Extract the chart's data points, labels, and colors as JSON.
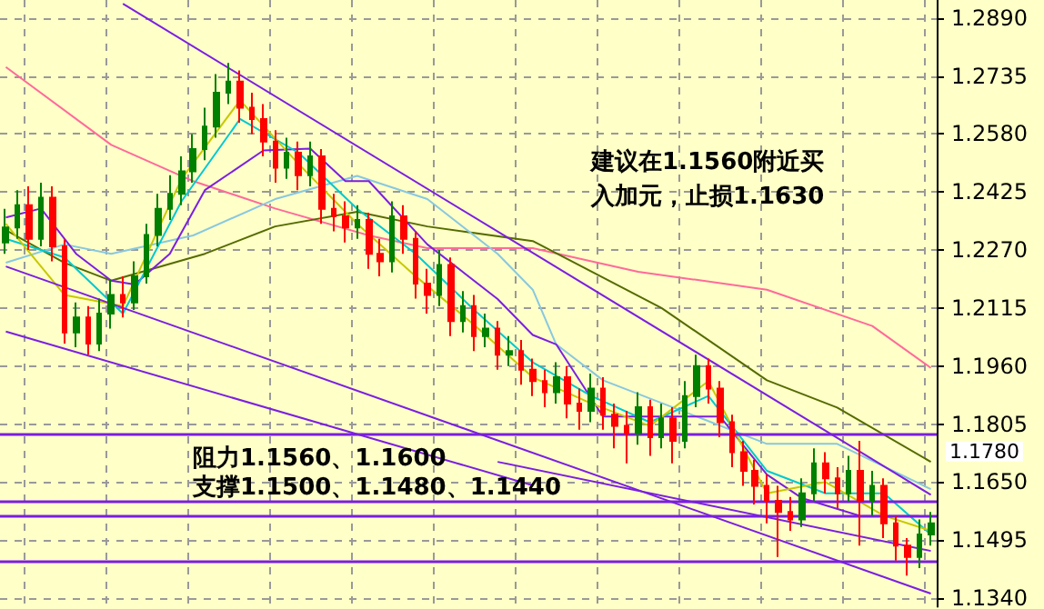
{
  "chart_data": {
    "type": "candlestick",
    "categories": [
      null,
      null,
      null,
      null,
      null,
      null,
      null,
      null,
      null,
      null,
      null,
      null,
      null,
      null,
      null,
      null,
      null,
      null,
      null,
      null,
      null,
      null,
      null,
      null,
      null,
      null,
      null,
      null,
      null,
      null,
      null,
      null,
      null,
      null,
      null,
      null,
      null,
      null,
      null,
      null,
      null,
      null,
      null,
      null,
      null,
      null,
      null,
      null,
      null,
      null,
      null,
      null,
      null,
      null,
      null,
      null,
      null,
      null,
      null,
      null,
      null,
      null,
      null,
      null,
      null,
      null,
      null,
      null,
      null,
      null,
      null,
      null,
      null,
      null,
      null,
      null,
      null,
      null,
      null,
      null
    ],
    "ylim": [
      1.1317,
      1.2938
    ],
    "yticks": [
      {
        "value": 1.289,
        "label": "1.2890"
      },
      {
        "value": 1.2735,
        "label": "1.2735"
      },
      {
        "value": 1.258,
        "label": "1.2580"
      },
      {
        "value": 1.2425,
        "label": "1.2425"
      },
      {
        "value": 1.227,
        "label": "1.2270"
      },
      {
        "value": 1.2115,
        "label": "1.2115"
      },
      {
        "value": 1.196,
        "label": "1.1960"
      },
      {
        "value": 1.1805,
        "label": "1.1805"
      },
      {
        "value": 1.165,
        "label": "1.1650"
      },
      {
        "value": 1.1495,
        "label": "1.1495"
      },
      {
        "value": 1.134,
        "label": "1.1340"
      }
    ],
    "tick_labels": "y",
    "grid": true,
    "ref_lines": [
      {
        "axis": "y",
        "value": 1.178,
        "label": "1.1780",
        "color": "#7b1fe0"
      },
      {
        "axis": "y",
        "value": 1.16,
        "color": "#7b1fe0"
      },
      {
        "axis": "y",
        "value": 1.156,
        "color": "#7b1fe0"
      },
      {
        "axis": "y",
        "value": 1.144,
        "color": "#7b1fe0"
      }
    ],
    "annotations": [
      "建议在1.1560附近买入加元，止损1.1630",
      "阻力1.1560、1.1600",
      "支撑1.1500、1.1480、1.1440"
    ],
    "series": [
      {
        "ohlc": [
          [
            1.229,
            1.238,
            1.226,
            1.233
          ],
          [
            1.233,
            1.243,
            1.23,
            1.239
          ],
          [
            1.239,
            1.244,
            1.227,
            1.23
          ],
          [
            1.23,
            1.245,
            1.228,
            1.241
          ],
          [
            1.241,
            1.244,
            1.224,
            1.228
          ],
          [
            1.228,
            1.23,
            1.202,
            1.205
          ],
          [
            1.205,
            1.213,
            1.201,
            1.209
          ],
          [
            1.209,
            1.212,
            1.199,
            1.202
          ],
          [
            1.202,
            1.214,
            1.2,
            1.21
          ],
          [
            1.21,
            1.219,
            1.206,
            1.215
          ],
          [
            1.215,
            1.22,
            1.209,
            1.213
          ],
          [
            1.213,
            1.224,
            1.211,
            1.22
          ],
          [
            1.22,
            1.234,
            1.218,
            1.231
          ],
          [
            1.231,
            1.242,
            1.228,
            1.238
          ],
          [
            1.238,
            1.247,
            1.235,
            1.242
          ],
          [
            1.242,
            1.252,
            1.239,
            1.248
          ],
          [
            1.248,
            1.258,
            1.245,
            1.254
          ],
          [
            1.254,
            1.265,
            1.251,
            1.26
          ],
          [
            1.26,
            1.274,
            1.257,
            1.269
          ],
          [
            1.269,
            1.277,
            1.266,
            1.272
          ],
          [
            1.272,
            1.275,
            1.261,
            1.265
          ],
          [
            1.265,
            1.269,
            1.258,
            1.262
          ],
          [
            1.262,
            1.266,
            1.252,
            1.256
          ],
          [
            1.256,
            1.259,
            1.245,
            1.249
          ],
          [
            1.249,
            1.257,
            1.246,
            1.253
          ],
          [
            1.253,
            1.256,
            1.243,
            1.247
          ],
          [
            1.247,
            1.256,
            1.244,
            1.252
          ],
          [
            1.252,
            1.254,
            1.234,
            1.238
          ],
          [
            1.238,
            1.242,
            1.232,
            1.236
          ],
          [
            1.236,
            1.24,
            1.229,
            1.233
          ],
          [
            1.233,
            1.239,
            1.23,
            1.235
          ],
          [
            1.235,
            1.237,
            1.222,
            1.226
          ],
          [
            1.226,
            1.23,
            1.22,
            1.224
          ],
          [
            1.224,
            1.24,
            1.221,
            1.236
          ],
          [
            1.236,
            1.239,
            1.226,
            1.23
          ],
          [
            1.23,
            1.232,
            1.214,
            1.218
          ],
          [
            1.218,
            1.222,
            1.21,
            1.215
          ],
          [
            1.215,
            1.227,
            1.212,
            1.223
          ],
          [
            1.223,
            1.225,
            1.204,
            1.208
          ],
          [
            1.208,
            1.216,
            1.205,
            1.212
          ],
          [
            1.212,
            1.215,
            1.2,
            1.204
          ],
          [
            1.204,
            1.21,
            1.201,
            1.206
          ],
          [
            1.206,
            1.208,
            1.195,
            1.199
          ],
          [
            1.199,
            1.204,
            1.196,
            1.2
          ],
          [
            1.2,
            1.203,
            1.191,
            1.195
          ],
          [
            1.195,
            1.198,
            1.188,
            1.192
          ],
          [
            1.192,
            1.195,
            1.185,
            1.189
          ],
          [
            1.189,
            1.197,
            1.186,
            1.193
          ],
          [
            1.193,
            1.196,
            1.182,
            1.186
          ],
          [
            1.186,
            1.19,
            1.179,
            1.184
          ],
          [
            1.184,
            1.194,
            1.181,
            1.19
          ],
          [
            1.19,
            1.193,
            1.179,
            1.183
          ],
          [
            1.183,
            1.186,
            1.174,
            1.18
          ],
          [
            1.18,
            1.184,
            1.17,
            1.178
          ],
          [
            1.178,
            1.189,
            1.175,
            1.185
          ],
          [
            1.185,
            1.187,
            1.172,
            1.177
          ],
          [
            1.177,
            1.186,
            1.174,
            1.182
          ],
          [
            1.182,
            1.185,
            1.17,
            1.176
          ],
          [
            1.176,
            1.192,
            1.174,
            1.188
          ],
          [
            1.188,
            1.199,
            1.185,
            1.196
          ],
          [
            1.196,
            1.198,
            1.186,
            1.19
          ],
          [
            1.19,
            1.192,
            1.177,
            1.181
          ],
          [
            1.181,
            1.183,
            1.169,
            1.173
          ],
          [
            1.173,
            1.176,
            1.164,
            1.168
          ],
          [
            1.168,
            1.171,
            1.159,
            1.164
          ],
          [
            1.164,
            1.167,
            1.154,
            1.16
          ],
          [
            1.16,
            1.164,
            1.145,
            1.157
          ],
          [
            1.157,
            1.161,
            1.152,
            1.155
          ],
          [
            1.155,
            1.166,
            1.153,
            1.162
          ],
          [
            1.162,
            1.174,
            1.16,
            1.17
          ],
          [
            1.17,
            1.173,
            1.162,
            1.166
          ],
          [
            1.166,
            1.169,
            1.158,
            1.162
          ],
          [
            1.162,
            1.172,
            1.16,
            1.168
          ],
          [
            1.168,
            1.176,
            1.148,
            1.16
          ],
          [
            1.16,
            1.168,
            1.156,
            1.164
          ],
          [
            1.164,
            1.166,
            1.15,
            1.154
          ],
          [
            1.154,
            1.156,
            1.144,
            1.148
          ],
          [
            1.148,
            1.15,
            1.14,
            1.145
          ],
          [
            1.145,
            1.155,
            1.142,
            1.151
          ],
          [
            1.151,
            1.157,
            1.148,
            1.154
          ]
        ],
        "colors": [
          "#008000",
          "#008000",
          "#ff0000",
          "#008000",
          "#ff0000",
          "#ff0000",
          "#008000",
          "#ff0000",
          "#008000",
          "#008000",
          "#ff0000",
          "#008000",
          "#008000",
          "#008000",
          "#008000",
          "#008000",
          "#008000",
          "#008000",
          "#008000",
          "#008000",
          "#ff0000",
          "#ff0000",
          "#ff0000",
          "#ff0000",
          "#008000",
          "#ff0000",
          "#008000",
          "#ff0000",
          "#ff0000",
          "#ff0000",
          "#008000",
          "#ff0000",
          "#ff0000",
          "#008000",
          "#ff0000",
          "#ff0000",
          "#ff0000",
          "#008000",
          "#ff0000",
          "#008000",
          "#ff0000",
          "#008000",
          "#ff0000",
          "#008000",
          "#ff0000",
          "#ff0000",
          "#ff0000",
          "#008000",
          "#ff0000",
          "#ff0000",
          "#008000",
          "#ff0000",
          "#ff0000",
          "#ff0000",
          "#008000",
          "#ff0000",
          "#008000",
          "#ff0000",
          "#008000",
          "#008000",
          "#ff0000",
          "#ff0000",
          "#ff0000",
          "#ff0000",
          "#ff0000",
          "#ff0000",
          "#ff0000",
          "#ff0000",
          "#008000",
          "#008000",
          "#ff0000",
          "#ff0000",
          "#008000",
          "#ff0000",
          "#008000",
          "#ff0000",
          "#ff0000",
          "#ff0000",
          "#008000",
          "#008000"
        ]
      },
      {
        "type": "line",
        "color": "#ff6a9a",
        "values": [
          1.2759,
          null,
          null,
          null,
          null,
          null,
          null,
          null,
          null,
          1.2551,
          null,
          null,
          null,
          null,
          null,
          null,
          1.2454,
          null,
          null,
          null,
          null,
          null,
          null,
          1.2381,
          null,
          null,
          null,
          null,
          null,
          null,
          null,
          1.2309,
          null,
          null,
          null,
          null,
          1.2275,
          null,
          null,
          null,
          null,
          null,
          null,
          null,
          null,
          1.2275,
          null,
          null,
          null,
          null,
          null,
          null,
          null,
          null,
          1.2212,
          null,
          null,
          null,
          null,
          null,
          null,
          null,
          null,
          null,
          null,
          1.2164,
          null,
          null,
          null,
          null,
          null,
          null,
          null,
          null,
          1.2067,
          null,
          null,
          null,
          null,
          1.1955
        ]
      },
      {
        "type": "line",
        "color": "#556b00",
        "values": [
          1.2323,
          null,
          null,
          null,
          null,
          1.2236,
          null,
          null,
          null,
          1.2188,
          null,
          null,
          null,
          null,
          null,
          null,
          null,
          1.226,
          null,
          null,
          null,
          null,
          null,
          1.2333,
          null,
          null,
          null,
          null,
          null,
          null,
          1.2372,
          null,
          null,
          null,
          null,
          null,
          1.2333,
          null,
          null,
          null,
          null,
          null,
          null,
          null,
          null,
          1.2294,
          null,
          null,
          null,
          null,
          null,
          null,
          null,
          null,
          null,
          null,
          1.2115,
          null,
          null,
          null,
          null,
          null,
          null,
          null,
          null,
          1.1922,
          null,
          null,
          null,
          null,
          null,
          1.1849,
          null,
          null,
          null,
          null,
          null,
          null,
          null,
          1.1704
        ]
      },
      {
        "type": "line",
        "color": "#88c8e0",
        "values": [
          1.2236,
          null,
          null,
          null,
          null,
          1.2285,
          null,
          null,
          null,
          1.226,
          null,
          null,
          null,
          null,
          null,
          null,
          1.2309,
          null,
          null,
          null,
          null,
          null,
          null,
          1.2406,
          null,
          null,
          null,
          null,
          null,
          null,
          1.2468,
          null,
          null,
          null,
          null,
          null,
          1.2406,
          null,
          null,
          null,
          null,
          null,
          1.226,
          null,
          null,
          1.2164,
          null,
          1.2018,
          null,
          null,
          null,
          1.1922,
          null,
          null,
          null,
          null,
          null,
          null,
          null,
          1.1825,
          null,
          null,
          null,
          null,
          null,
          1.1752,
          null,
          null,
          null,
          null,
          null,
          1.1752,
          null,
          null,
          null,
          null,
          null,
          null,
          null,
          1.1631
        ]
      },
      {
        "type": "line",
        "color": "#7b1fe0",
        "values": [
          1.2357,
          null,
          null,
          1.2381,
          null,
          null,
          1.226,
          null,
          null,
          1.2188,
          null,
          1.2178,
          null,
          null,
          1.226,
          null,
          null,
          1.243,
          null,
          null,
          null,
          null,
          1.2536,
          null,
          null,
          null,
          1.2541,
          null,
          null,
          1.2454,
          null,
          1.2454,
          null,
          null,
          null,
          null,
          1.2285,
          null,
          null,
          null,
          null,
          null,
          1.2139,
          null,
          null,
          1.2043,
          null,
          1.2018,
          null,
          null,
          null,
          1.1825,
          null,
          null,
          null,
          null,
          1.1825,
          null,
          null,
          null,
          null,
          1.1825,
          null,
          null,
          null,
          1.167,
          null,
          null,
          1.1607,
          null,
          null,
          null,
          null,
          1.1559,
          null,
          null,
          null,
          null,
          1.1559,
          null
        ]
      },
      {
        "type": "line",
        "color": "#00c8d0",
        "values": [
          1.23,
          null,
          null,
          null,
          null,
          1.225,
          null,
          null,
          null,
          null,
          1.21,
          null,
          null,
          null,
          null,
          1.24,
          null,
          null,
          null,
          null,
          1.262,
          null,
          null,
          null,
          null,
          1.253,
          null,
          null,
          null,
          null,
          1.238,
          null,
          null,
          null,
          null,
          1.226,
          null,
          null,
          null,
          null,
          1.211,
          null,
          null,
          null,
          null,
          1.197,
          null,
          null,
          null,
          null,
          1.188,
          null,
          null,
          null,
          null,
          1.181,
          null,
          null,
          null,
          null,
          1.188,
          null,
          null,
          null,
          null,
          1.168,
          null,
          null,
          null,
          null,
          1.162,
          null,
          null,
          null,
          null,
          1.162,
          null,
          null,
          null,
          1.151
        ]
      },
      {
        "type": "line",
        "color": "#c8c800",
        "values": [
          1.234,
          null,
          null,
          null,
          null,
          1.215,
          null,
          null,
          null,
          null,
          1.212,
          null,
          null,
          null,
          null,
          1.246,
          null,
          null,
          null,
          null,
          1.267,
          null,
          null,
          null,
          null,
          1.25,
          null,
          null,
          null,
          null,
          1.234,
          null,
          null,
          null,
          null,
          1.22,
          null,
          null,
          null,
          null,
          1.207,
          null,
          null,
          null,
          null,
          1.193,
          null,
          null,
          null,
          null,
          1.186,
          null,
          null,
          null,
          null,
          1.18,
          null,
          null,
          null,
          null,
          1.192,
          null,
          null,
          null,
          null,
          1.162,
          null,
          null,
          null,
          null,
          1.165,
          null,
          null,
          null,
          null,
          1.156,
          null,
          null,
          null,
          1.152
        ]
      },
      {
        "type": "line",
        "color": "#7b1fe0",
        "values": [
          null,
          null,
          null,
          null,
          null,
          null,
          null,
          null,
          null,
          null,
          1.2928,
          null,
          null,
          null,
          null,
          null,
          null,
          null,
          null,
          null,
          null,
          null,
          null,
          null,
          null,
          null,
          null,
          null,
          null,
          null,
          null,
          null,
          null,
          null,
          null,
          null,
          null,
          null,
          null,
          null,
          null,
          null,
          null,
          null,
          null,
          null,
          null,
          null,
          null,
          null,
          null,
          null,
          null,
          null,
          null,
          null,
          null,
          null,
          null,
          null,
          null,
          null,
          null,
          null,
          null,
          null,
          null,
          null,
          null,
          null,
          null,
          null,
          null,
          null,
          null,
          null,
          null,
          null,
          null,
          1.1616
        ]
      },
      {
        "type": "line",
        "color": "#7b1fe0",
        "values": [
          1.2226,
          null,
          null,
          null,
          null,
          null,
          null,
          null,
          null,
          null,
          null,
          null,
          null,
          null,
          null,
          null,
          null,
          null,
          null,
          null,
          null,
          null,
          null,
          null,
          null,
          null,
          null,
          null,
          null,
          null,
          null,
          null,
          null,
          null,
          null,
          null,
          null,
          null,
          null,
          null,
          null,
          null,
          null,
          null,
          null,
          null,
          null,
          null,
          null,
          null,
          null,
          null,
          null,
          null,
          null,
          null,
          null,
          null,
          null,
          null,
          null,
          null,
          null,
          null,
          null,
          null,
          null,
          null,
          null,
          null,
          null,
          null,
          null,
          null,
          null,
          null,
          null,
          null,
          null,
          1.1352
        ]
      },
      {
        "type": "line",
        "color": "#7b1fe0",
        "values": [
          1.2052,
          null,
          null,
          null,
          null,
          null,
          null,
          null,
          null,
          null,
          null,
          null,
          null,
          null,
          null,
          null,
          null,
          null,
          null,
          null,
          null,
          null,
          null,
          null,
          null,
          null,
          null,
          null,
          null,
          null,
          null,
          null,
          null,
          null,
          null,
          null,
          null,
          null,
          null,
          null,
          null,
          null,
          null,
          null,
          null,
          1.1641,
          null,
          null,
          null,
          null,
          null,
          null,
          null,
          null,
          null,
          null,
          null,
          null,
          null,
          null,
          null,
          null,
          null,
          null,
          null,
          null,
          null,
          null,
          null,
          null,
          null,
          null,
          null,
          null,
          null,
          null,
          null,
          null,
          null,
          null
        ]
      },
      {
        "type": "line",
        "color": "#7b1fe0",
        "values": [
          null,
          null,
          null,
          null,
          null,
          null,
          null,
          null,
          null,
          null,
          null,
          null,
          null,
          null,
          null,
          null,
          null,
          null,
          null,
          null,
          null,
          null,
          null,
          null,
          null,
          null,
          null,
          null,
          null,
          null,
          null,
          null,
          null,
          null,
          null,
          null,
          null,
          null,
          null,
          null,
          null,
          null,
          1.1704,
          null,
          null,
          null,
          null,
          null,
          null,
          null,
          null,
          null,
          null,
          null,
          null,
          null,
          null,
          null,
          null,
          null,
          null,
          null,
          null,
          null,
          null,
          null,
          null,
          null,
          null,
          null,
          null,
          null,
          null,
          null,
          null,
          null,
          null,
          null,
          null,
          1.1466
        ]
      }
    ]
  }
}
